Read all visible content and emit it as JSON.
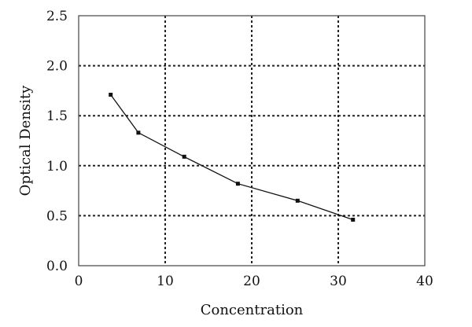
{
  "chart_data": {
    "type": "line",
    "title": "",
    "xlabel": "Concentration",
    "ylabel": "Optical Density",
    "xlim": [
      0,
      40
    ],
    "ylim": [
      0.0,
      2.5
    ],
    "x_ticks": [
      "0",
      "10",
      "20",
      "30",
      "40"
    ],
    "y_ticks": [
      "0.0",
      "0.5",
      "1.0",
      "1.5",
      "2.0",
      "2.5"
    ],
    "grid": true,
    "series": [
      {
        "x": [
          3.7,
          6.9,
          12.2,
          18.4,
          25.3,
          31.7
        ],
        "y": [
          1.71,
          1.33,
          1.09,
          0.82,
          0.65,
          0.46
        ]
      }
    ]
  }
}
